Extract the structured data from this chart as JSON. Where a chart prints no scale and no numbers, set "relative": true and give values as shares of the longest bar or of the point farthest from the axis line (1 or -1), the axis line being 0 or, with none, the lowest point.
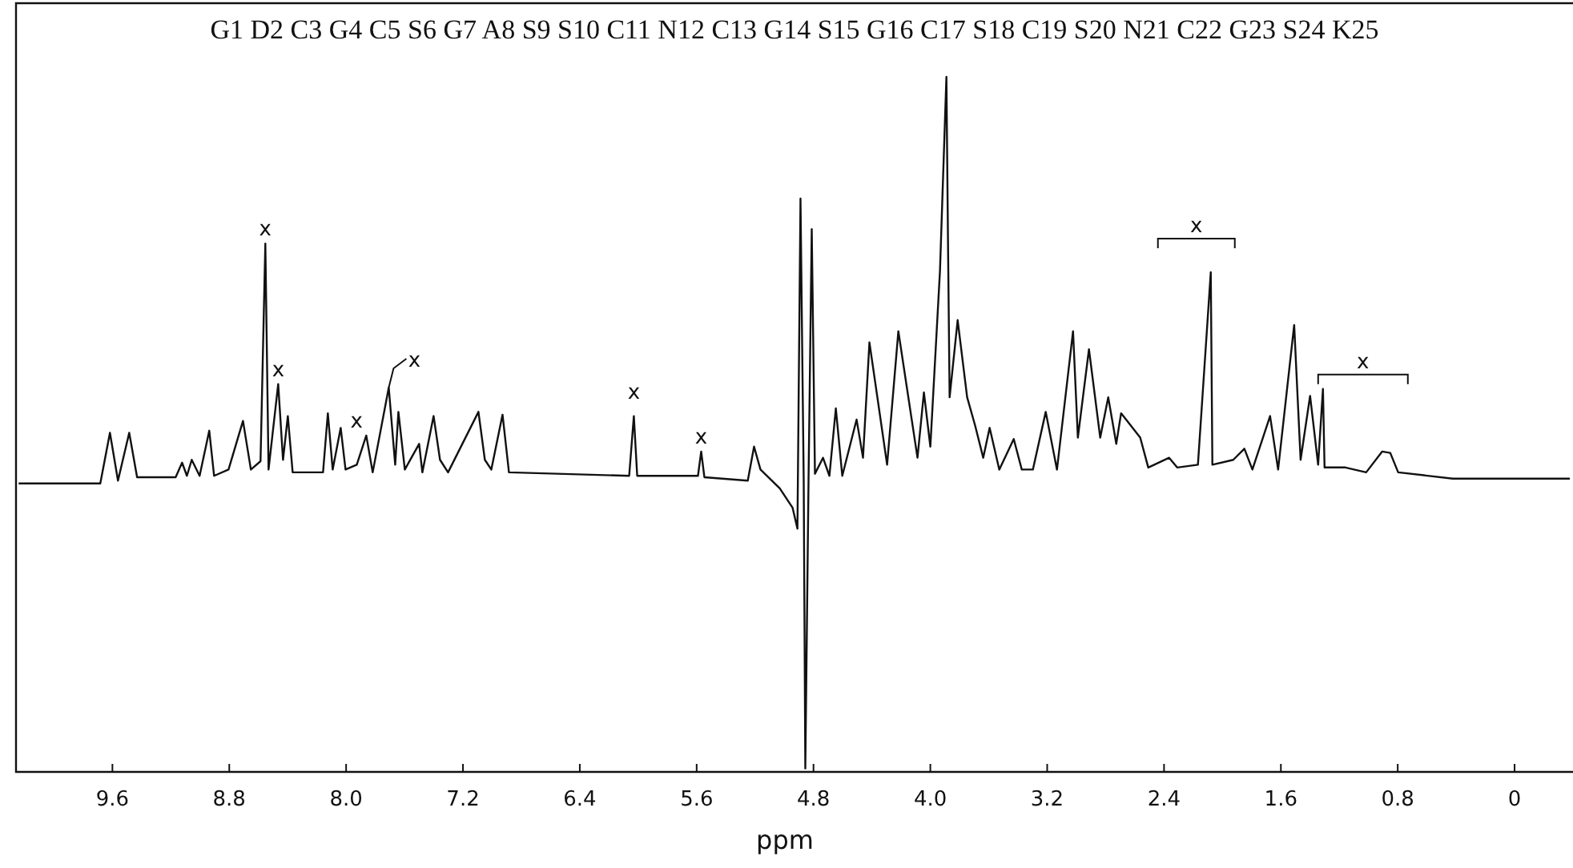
{
  "chart_data": {
    "type": "line",
    "title": "G1 D2 C3 G4 C5 S6 G7 A8 S9 S10 C11 N12 C13 G14 S15 G16 C17 S18 C19 S20 N21 C22 G23 S24 K25",
    "xlabel": "ppm",
    "relative": true,
    "xlim": [
      10.26,
      -0.4
    ],
    "xticks": [
      9.6,
      8.8,
      {
        "value": 8,
        "label": "8.0"
      },
      7.2,
      6.4,
      5.6,
      4.8,
      {
        "value": 4,
        "label": "4.0"
      },
      3.2,
      2.4,
      1.6,
      0.8,
      0
    ],
    "x": [
      10.242,
      9.683,
      9.617,
      9.562,
      9.485,
      9.431,
      9.167,
      9.123,
      9.09,
      9.057,
      9.003,
      8.937,
      8.904,
      8.805,
      8.706,
      8.652,
      8.586,
      8.553,
      8.531,
      8.465,
      8.432,
      8.399,
      8.366,
      8.158,
      8.125,
      8.092,
      8.037,
      8.004,
      7.927,
      7.862,
      7.818,
      7.708,
      7.664,
      7.642,
      7.598,
      7.5,
      7.478,
      7.401,
      7.357,
      7.302,
      7.094,
      7.05,
      7.006,
      6.929,
      6.885,
      6.062,
      6.03,
      6.007,
      5.591,
      5.569,
      5.547,
      5.25,
      5.207,
      5.163,
      5.031,
      4.943,
      4.91,
      4.889,
      4.867,
      4.856,
      4.834,
      4.812,
      4.79,
      4.735,
      4.691,
      4.647,
      4.603,
      4.505,
      4.461,
      4.417,
      4.296,
      4.219,
      4.088,
      4.044,
      4.0,
      3.934,
      3.89,
      3.879,
      3.868,
      3.813,
      3.748,
      3.693,
      3.638,
      3.594,
      3.528,
      3.429,
      3.374,
      3.298,
      3.21,
      3.133,
      3.023,
      2.99,
      2.914,
      2.837,
      2.782,
      2.727,
      2.694,
      2.563,
      2.508,
      2.365,
      2.31,
      2.168,
      2.08,
      2.069,
      1.926,
      1.85,
      1.795,
      1.674,
      1.619,
      1.509,
      1.465,
      1.4,
      1.345,
      1.312,
      1.301,
      1.158,
      1.016,
      0.906,
      0.851,
      0.797,
      0.423,
      -0.378
    ],
    "series": [
      {
        "color": "#111111",
        "values": [
          0.415,
          0.415,
          0.488,
          0.419,
          0.488,
          0.424,
          0.424,
          0.445,
          0.426,
          0.449,
          0.426,
          0.491,
          0.426,
          0.435,
          0.505,
          0.435,
          0.447,
          0.76,
          0.435,
          0.558,
          0.449,
          0.512,
          0.431,
          0.431,
          0.516,
          0.435,
          0.495,
          0.435,
          0.442,
          0.484,
          0.431,
          0.553,
          0.442,
          0.518,
          0.435,
          0.472,
          0.431,
          0.512,
          0.449,
          0.431,
          0.518,
          0.449,
          0.435,
          0.514,
          0.431,
          0.426,
          0.512,
          0.426,
          0.426,
          0.461,
          0.424,
          0.419,
          0.468,
          0.435,
          0.408,
          0.38,
          0.35,
          0.825,
          0.419,
          0.005,
          0.419,
          0.781,
          0.429,
          0.452,
          0.426,
          0.523,
          0.426,
          0.507,
          0.452,
          0.618,
          0.442,
          0.634,
          0.452,
          0.546,
          0.468,
          0.721,
          1.0,
          0.76,
          0.539,
          0.65,
          0.539,
          0.498,
          0.452,
          0.495,
          0.435,
          0.479,
          0.435,
          0.435,
          0.518,
          0.435,
          0.634,
          0.481,
          0.608,
          0.481,
          0.539,
          0.472,
          0.516,
          0.481,
          0.438,
          0.452,
          0.438,
          0.442,
          0.719,
          0.442,
          0.449,
          0.465,
          0.435,
          0.512,
          0.435,
          0.643,
          0.449,
          0.541,
          0.442,
          0.551,
          0.438,
          0.438,
          0.431,
          0.461,
          0.459,
          0.431,
          0.422,
          0.422
        ]
      }
    ],
    "annotations": [
      {
        "text": "x",
        "x": 8.553,
        "y": 0.76
      },
      {
        "text": "x",
        "x": 8.465,
        "y": 0.558
      },
      {
        "text": "x",
        "x": 7.862,
        "y": 0.484
      },
      {
        "text": "x",
        "x": 7.708,
        "y": 0.553
      },
      {
        "text": "x",
        "x": 6.03,
        "y": 0.512
      },
      {
        "text": "x",
        "x": 5.569,
        "y": 0.461
      },
      {
        "text": "x",
        "x": 2.08,
        "y": 0.719
      },
      {
        "text": "x",
        "x": 1.312,
        "y": 0.551
      }
    ]
  }
}
